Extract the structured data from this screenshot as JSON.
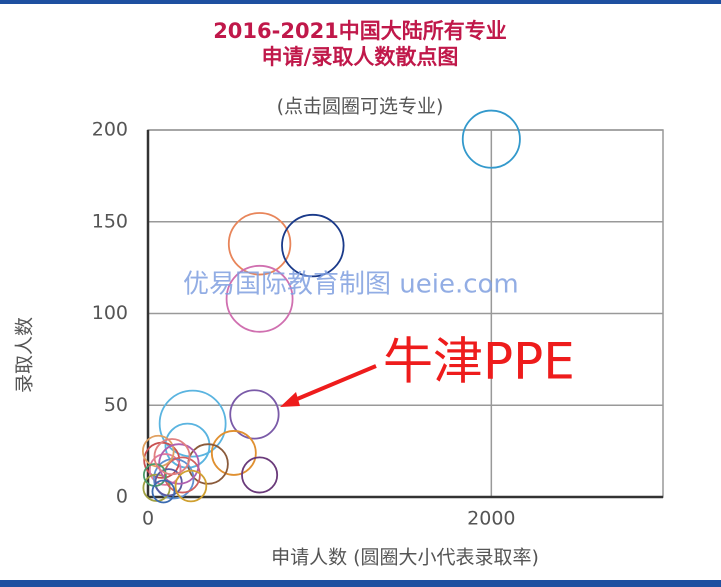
{
  "chart_data": {
    "type": "scatter",
    "title": "2016-2021中国大陆所有专业",
    "title_line2": "申请/录取人数散点图",
    "subtitle": "(点击圆圈可选专业)",
    "x_label": "申请人数 (圆圈大小代表录取率)",
    "y_label": "录取人数",
    "watermark": "优易国际教育制图 ueie.com",
    "annotation": "牛津PPE",
    "xlim": [
      0,
      3000
    ],
    "xticks": [
      0,
      2000
    ],
    "ylim": [
      0,
      200
    ],
    "yticks": [
      0,
      50,
      100,
      150,
      200
    ],
    "grid": true,
    "x": [
      2000,
      650,
      960,
      650,
      620,
      260,
      500,
      650,
      230,
      350,
      80,
      100,
      150,
      50,
      200,
      120,
      60,
      180,
      40,
      250,
      90,
      140
    ],
    "values": [
      195,
      138,
      137,
      108,
      45,
      40,
      24,
      12,
      28,
      18,
      20,
      15,
      10,
      5,
      12,
      8,
      25,
      18,
      12,
      6,
      3,
      22
    ],
    "sizes": [
      13,
      14,
      14,
      15,
      11,
      15,
      10,
      8,
      10,
      9,
      8,
      7,
      9,
      6,
      8,
      6,
      7,
      9,
      5,
      7,
      5,
      8
    ],
    "colors": [
      "#3399cc",
      "#e8855a",
      "#1a3a8a",
      "#d070b0",
      "#7a5aa8",
      "#5ab4e0",
      "#e09030",
      "#6a3a7a",
      "#5ab4e0",
      "#8a5a3a",
      "#c85050",
      "#e07aa0",
      "#6090d0",
      "#a0a040",
      "#d06060",
      "#5a5aa0",
      "#e0a060",
      "#b060b0",
      "#4a9a6a",
      "#d0a030",
      "#3a6ab0",
      "#e08080"
    ]
  }
}
